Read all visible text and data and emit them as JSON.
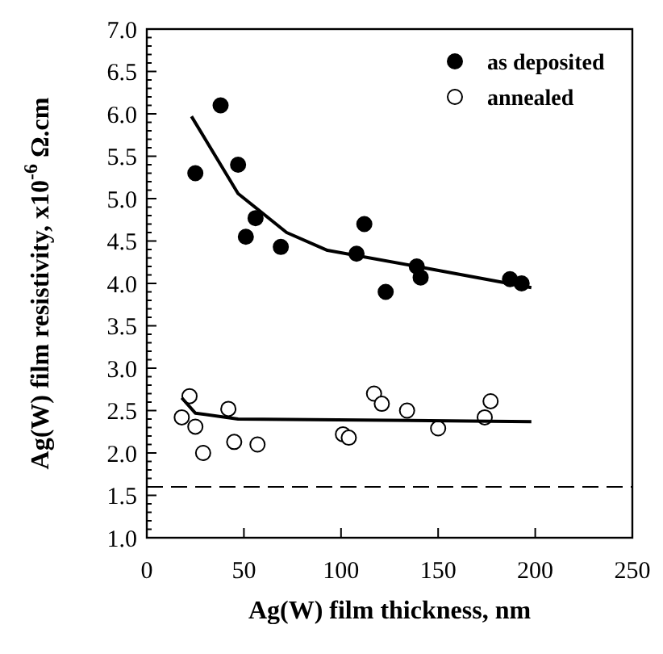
{
  "chart_data": {
    "type": "scatter",
    "xlabel": "Ag(W) film thickness, nm",
    "ylabel": "Ag(W) film resistivity, x10$^{-6}$ Ω.cm",
    "xlim": [
      0,
      250
    ],
    "ylim": [
      1.0,
      7.0
    ],
    "xticks": [
      0,
      50,
      100,
      150,
      200,
      250
    ],
    "yticks": [
      {
        "value": 1,
        "label": "1.0"
      },
      1.5,
      {
        "value": 2,
        "label": "2.0"
      },
      2.5,
      {
        "value": 3,
        "label": "3.0"
      },
      3.5,
      {
        "value": 4,
        "label": "4.0"
      },
      4.5,
      {
        "value": 5,
        "label": "5.0"
      },
      5.5,
      {
        "value": 6,
        "label": "6.0"
      },
      6.5,
      {
        "value": 7,
        "label": "7.0"
      }
    ],
    "legend": "top right",
    "marker": "circle",
    "grid": false,
    "series": [
      {
        "name": "as deposited",
        "color": "#000000",
        "x": [
          25,
          38,
          47,
          51,
          56,
          69,
          108,
          112,
          123,
          139,
          141,
          187,
          193
        ],
        "values": [
          5.3,
          6.1,
          5.4,
          4.55,
          4.77,
          4.43,
          4.35,
          4.7,
          3.9,
          4.2,
          4.07,
          4.05,
          4.0
        ]
      },
      {
        "name": "annealed",
        "color": "#ffffff",
        "x": [
          18,
          22,
          25,
          29,
          42,
          45,
          57,
          101,
          104,
          117,
          121,
          134,
          150,
          174,
          177
        ],
        "values": [
          2.42,
          2.67,
          2.31,
          2.0,
          2.52,
          2.13,
          2.1,
          2.22,
          2.18,
          2.7,
          2.58,
          2.5,
          2.29,
          2.42,
          2.61
        ]
      },
      {
        "type": "line",
        "color": "#000000",
        "marker": "none",
        "x": [
          23,
          47,
          72,
          93,
          139,
          198
        ],
        "values": [
          5.97,
          5.06,
          4.6,
          4.39,
          4.2,
          3.95
        ]
      },
      {
        "type": "line",
        "color": "#000000",
        "marker": "none",
        "x": [
          18,
          25,
          47,
          198
        ],
        "values": [
          2.65,
          2.47,
          2.4,
          2.37
        ]
      }
    ],
    "ref_lines": [
      {
        "axis": "y",
        "value": 1.6,
        "line_style": "dashed",
        "color": "#000000"
      }
    ]
  }
}
